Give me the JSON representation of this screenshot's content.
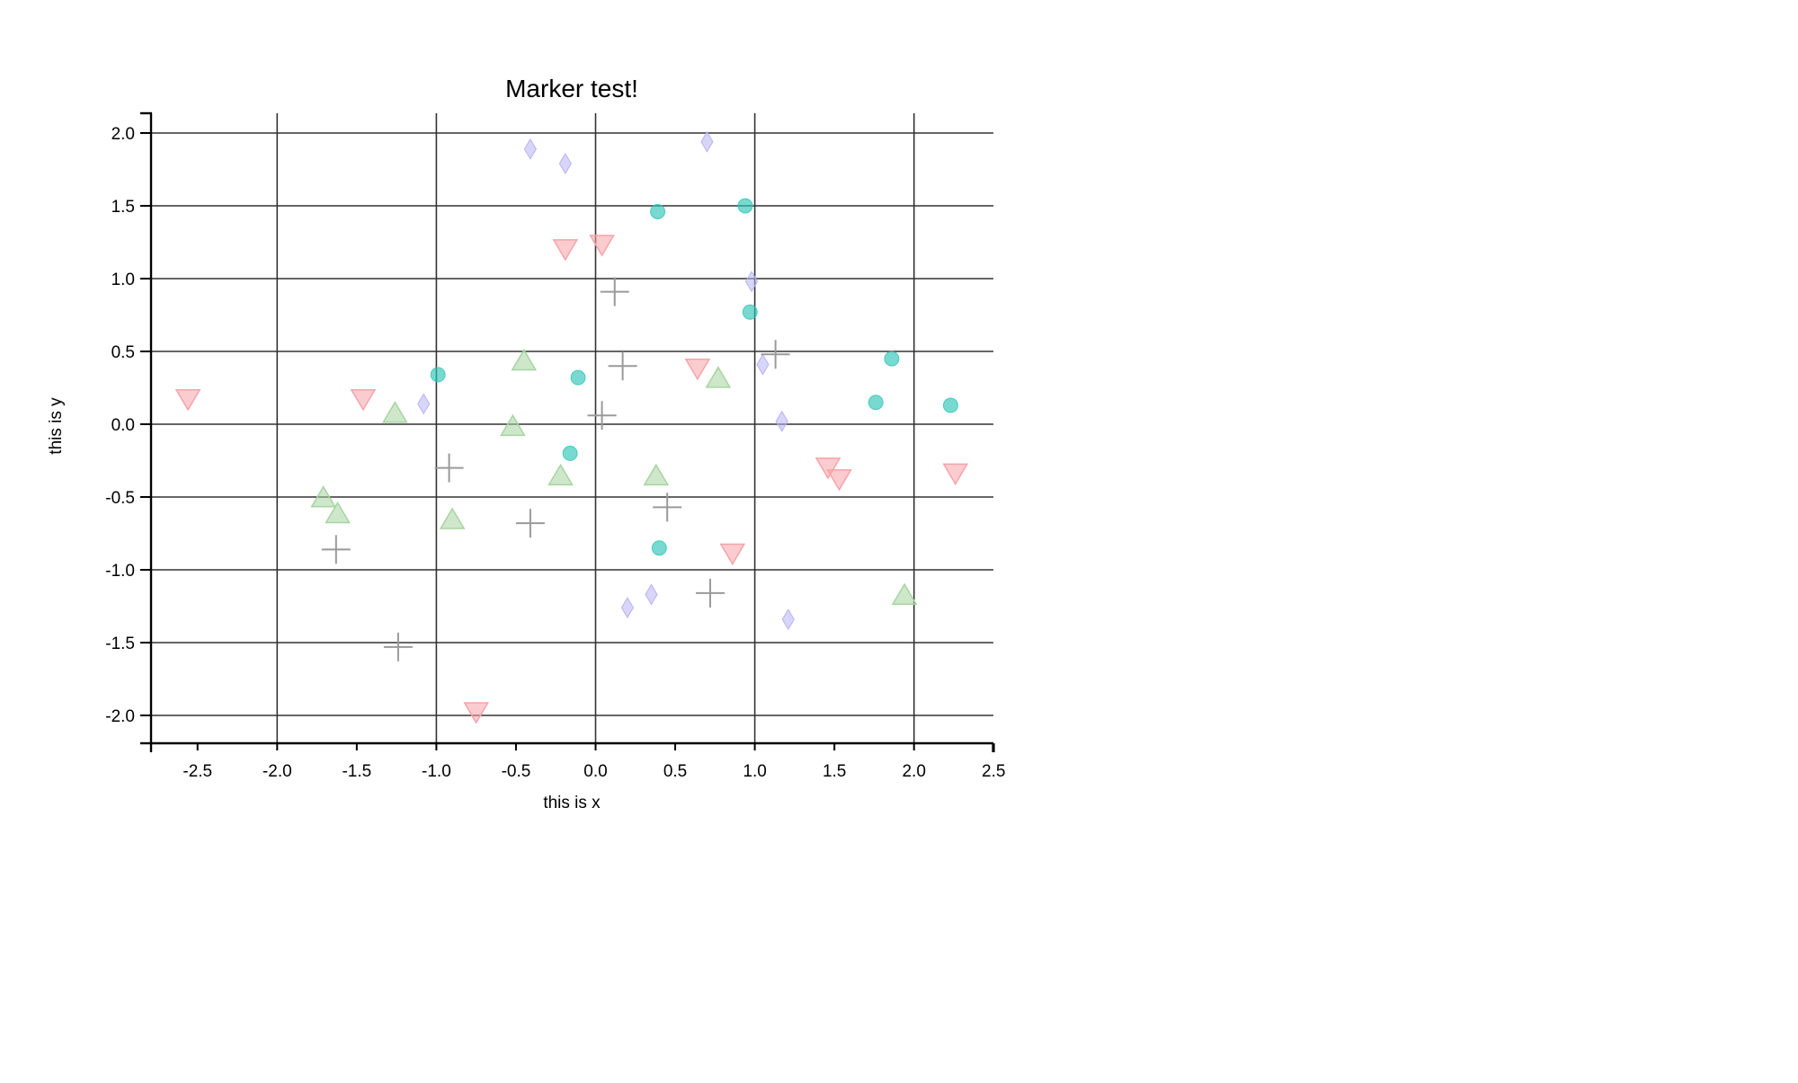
{
  "chart_data": {
    "type": "scatter",
    "title": "Marker test!",
    "xlabel": "this is x",
    "ylabel": "this is y",
    "xlim": [
      -2.8,
      2.5
    ],
    "ylim": [
      -2.2,
      2.15
    ],
    "grid": true,
    "legend": "none",
    "xticks": [
      -2.5,
      -2.0,
      -1.5,
      -1.0,
      -0.5,
      0.0,
      0.5,
      1.0,
      1.5,
      2.0,
      2.5
    ],
    "xtick_labels": [
      "-2.5",
      "-2.0",
      "-1.5",
      "-1.0",
      "-0.5",
      "0.0",
      "0.5",
      "1.0",
      "1.5",
      "2.0",
      "2.5"
    ],
    "yticks": [
      2.0,
      1.5,
      1.0,
      0.5,
      0.0,
      -0.5,
      -1.0,
      -1.5,
      -2.0
    ],
    "ytick_labels": [
      "2.0",
      "1.5",
      "1.0",
      "0.5",
      "0.0",
      "-0.5",
      "-1.0",
      "-1.5",
      "-2.0"
    ],
    "gridlines_x": [
      -2.0,
      -1.0,
      0.0,
      1.0,
      2.0
    ],
    "gridlines_y": [
      2.0,
      1.5,
      1.0,
      0.5,
      0.0,
      -0.5,
      -1.0,
      -1.5,
      -2.0
    ],
    "series": [
      {
        "marker": "diamond",
        "color": "#b7b3f2",
        "x": [
          -0.41,
          -0.19,
          0.7,
          0.98,
          -1.08,
          1.05,
          1.17,
          0.2,
          0.35,
          1.21
        ],
        "y": [
          1.89,
          1.79,
          1.94,
          0.98,
          0.14,
          0.41,
          0.02,
          -1.26,
          -1.17,
          -1.34
        ]
      },
      {
        "marker": "circle",
        "color": "#2ec4b6",
        "x": [
          0.39,
          0.94,
          0.97,
          -0.99,
          -0.11,
          1.86,
          1.76,
          2.23,
          -0.16,
          0.4
        ],
        "y": [
          1.46,
          1.5,
          0.77,
          0.34,
          0.32,
          0.45,
          0.15,
          0.13,
          -0.2,
          -0.85
        ]
      },
      {
        "marker": "triangle-down",
        "color": "#f7a3a8",
        "x": [
          -0.19,
          0.04,
          -2.56,
          -1.46,
          0.64,
          1.46,
          1.53,
          2.26,
          0.86,
          -0.75
        ],
        "y": [
          1.21,
          1.24,
          0.18,
          0.18,
          0.39,
          -0.29,
          -0.37,
          -0.33,
          -0.88,
          -1.97
        ]
      },
      {
        "marker": "triangle-up",
        "color": "#a6d4a0",
        "x": [
          -0.45,
          0.77,
          -1.26,
          -0.52,
          -0.22,
          0.38,
          -1.71,
          -1.62,
          -0.9,
          1.94
        ],
        "y": [
          0.43,
          0.31,
          0.07,
          -0.02,
          -0.36,
          -0.36,
          -0.51,
          -0.62,
          -0.66,
          -1.18
        ]
      },
      {
        "marker": "plus",
        "color": "#9a9a9a",
        "x": [
          0.12,
          1.13,
          0.17,
          0.04,
          -0.92,
          0.45,
          -0.41,
          -1.63,
          0.72,
          -1.24
        ],
        "y": [
          0.91,
          0.48,
          0.4,
          0.06,
          -0.3,
          -0.57,
          -0.68,
          -0.86,
          -1.16,
          -1.53
        ]
      }
    ]
  }
}
